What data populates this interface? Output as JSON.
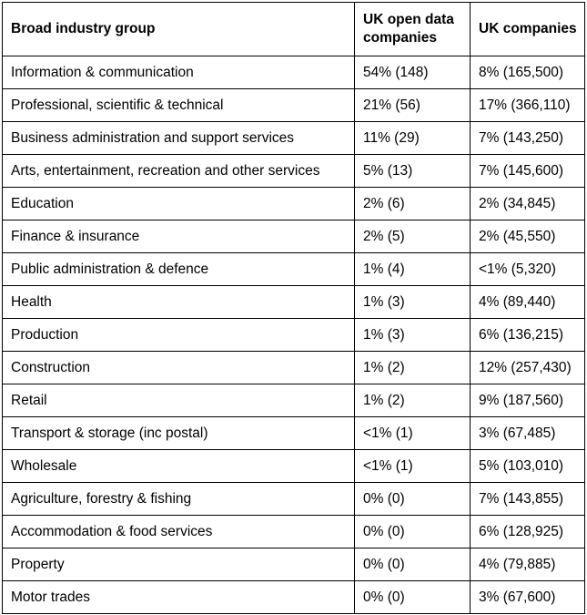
{
  "table": {
    "headers": [
      "Broad industry group",
      "UK open data companies",
      "UK companies"
    ],
    "rows": [
      [
        "Information & communication",
        "54% (148)",
        "8% (165,500)"
      ],
      [
        "Professional, scientific & technical",
        "21% (56)",
        "17% (366,110)"
      ],
      [
        "Business administration and support services",
        "11% (29)",
        "7% (143,250)"
      ],
      [
        "Arts, entertainment, recreation and other services",
        "5% (13)",
        "7% (145,600)"
      ],
      [
        "Education",
        "2% (6)",
        "2% (34,845)"
      ],
      [
        "Finance & insurance",
        "2% (5)",
        "2% (45,550)"
      ],
      [
        "Public administration & defence",
        "1% (4)",
        "<1% (5,320)"
      ],
      [
        "Health",
        "1% (3)",
        "4% (89,440)"
      ],
      [
        "Production",
        "1% (3)",
        "6% (136,215)"
      ],
      [
        "Construction",
        "1% (2)",
        "12% (257,430)"
      ],
      [
        "Retail",
        "1% (2)",
        "9% (187,560)"
      ],
      [
        "Transport & storage (inc postal)",
        "<1% (1)",
        "3% (67,485)"
      ],
      [
        "Wholesale",
        "<1% (1)",
        "5% (103,010)"
      ],
      [
        "Agriculture, forestry & fishing",
        "0% (0)",
        "7% (143,855)"
      ],
      [
        "Accommodation & food services",
        "0% (0)",
        "6% (128,925)"
      ],
      [
        "Property",
        "0% (0)",
        "4% (79,885)"
      ],
      [
        "Motor trades",
        "0% (0)",
        "3% (67,600)"
      ]
    ]
  }
}
